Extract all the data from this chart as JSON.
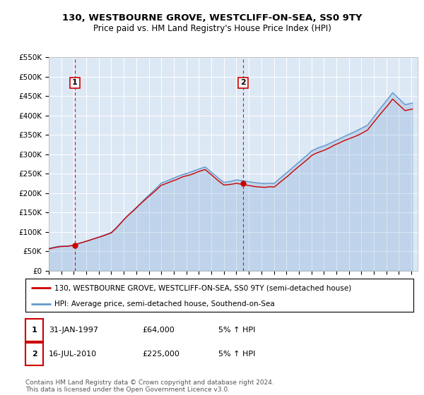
{
  "title": "130, WESTBOURNE GROVE, WESTCLIFF-ON-SEA, SS0 9TY",
  "subtitle": "Price paid vs. HM Land Registry's House Price Index (HPI)",
  "ylim": [
    0,
    550000
  ],
  "xlim_start": 1995.0,
  "xlim_end": 2024.5,
  "legend_line1": "130, WESTBOURNE GROVE, WESTCLIFF-ON-SEA, SS0 9TY (semi-detached house)",
  "legend_line2": "HPI: Average price, semi-detached house, Southend-on-Sea",
  "point1_date": "31-JAN-1997",
  "point1_price": "£64,000",
  "point1_hpi": "5% ↑ HPI",
  "point1_year": 1997.083,
  "point1_value": 64000,
  "point2_date": "16-JUL-2010",
  "point2_price": "£225,000",
  "point2_hpi": "5% ↑ HPI",
  "point2_year": 2010.542,
  "point2_value": 225000,
  "hpi_color": "#6699cc",
  "price_color": "#cc0000",
  "vline_color": "#cc0000",
  "bg_color": "#dde8f5",
  "footer": "Contains HM Land Registry data © Crown copyright and database right 2024.\nThis data is licensed under the Open Government Licence v3.0.",
  "xtick_years": [
    1995,
    1996,
    1997,
    1998,
    1999,
    2000,
    2001,
    2002,
    2003,
    2004,
    2005,
    2006,
    2007,
    2008,
    2009,
    2010,
    2011,
    2012,
    2013,
    2014,
    2015,
    2016,
    2017,
    2018,
    2019,
    2020,
    2021,
    2022,
    2023,
    2024
  ]
}
